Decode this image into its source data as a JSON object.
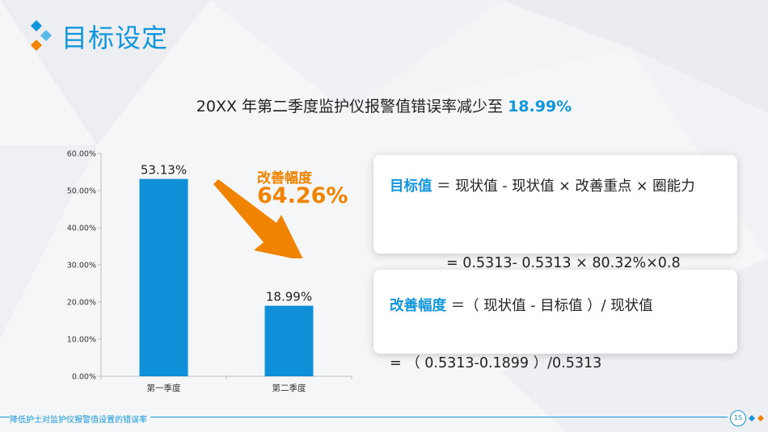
{
  "page": {
    "title": "目标设定",
    "headline_text": "20XX 年第二季度监护仪报警值错误率减少至",
    "headline_value": "18.99%",
    "footer_text": "降低护士对监护仪报警值设置的错误率",
    "page_number": "15"
  },
  "improvement": {
    "label": "改善幅度",
    "value": "64.26%",
    "color": "#f08300"
  },
  "formulas": {
    "target_key": "目标值",
    "target_expr": "＝ 现状值 - 现状值 × 改善重点 × 圈能力",
    "target_calc": "= 0.5313- 0.5313 × 80.32%×0.8",
    "improve_key": "改善幅度",
    "improve_expr": "＝（ 现状值 - 目标值 ）/ 现状值",
    "improve_calc": "= （ 0.5313-0.1899 ）/0.5313"
  },
  "colors": {
    "accent": "#1296db",
    "bar": "#0f8fd8",
    "orange": "#f08300"
  },
  "chart_data": {
    "type": "bar",
    "categories": [
      "第一季度",
      "第二季度"
    ],
    "values": [
      53.13,
      18.99
    ],
    "value_labels": [
      "53.13%",
      "18.99%"
    ],
    "y_ticks": [
      "0.00%",
      "10.00%",
      "20.00%",
      "30.00%",
      "40.00%",
      "50.00%",
      "60.00%"
    ],
    "ylim": [
      0,
      60
    ],
    "grid": false,
    "legend": "none",
    "title": "",
    "xlabel": "",
    "ylabel": ""
  }
}
